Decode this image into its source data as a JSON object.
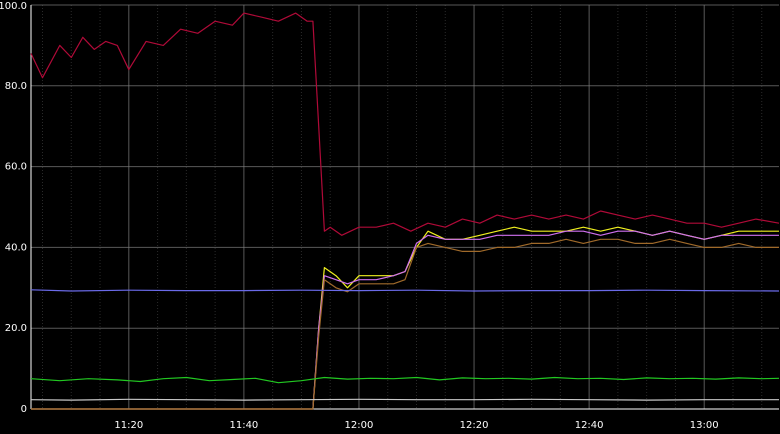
{
  "chart_data": {
    "type": "line",
    "title": "",
    "xlabel": "",
    "ylabel": "",
    "ylim": [
      0,
      100
    ],
    "xlim": [
      "11:03",
      "13:13"
    ],
    "grid": true,
    "background": "#000000",
    "grid_color": "#7f7f7f",
    "y_ticks": [
      {
        "value": 0,
        "label": "0"
      },
      {
        "value": 20,
        "label": "20.0"
      },
      {
        "value": 40,
        "label": "40.0"
      },
      {
        "value": 60,
        "label": "60.0"
      },
      {
        "value": 80,
        "label": "80.0"
      },
      {
        "value": 100,
        "label": "100.0"
      }
    ],
    "x_ticks": [
      {
        "value": "11:20",
        "label": "11:20"
      },
      {
        "value": "11:40",
        "label": "11:40"
      },
      {
        "value": "12:00",
        "label": "12:00"
      },
      {
        "value": "12:20",
        "label": "12:20"
      },
      {
        "value": "12:40",
        "label": "12:40"
      },
      {
        "value": "13:00",
        "label": "13:00"
      }
    ],
    "minor_x_ticks": [
      "11:05",
      "11:10",
      "11:15",
      "11:25",
      "11:30",
      "11:35",
      "11:45",
      "11:50",
      "11:55",
      "12:05",
      "12:10",
      "12:15",
      "12:25",
      "12:30",
      "12:35",
      "12:45",
      "12:50",
      "12:55",
      "13:05",
      "13:10"
    ],
    "series": [
      {
        "color": "#b00a38",
        "x": [
          "11:03",
          "11:05",
          "11:08",
          "11:10",
          "11:12",
          "11:14",
          "11:16",
          "11:18",
          "11:20",
          "11:23",
          "11:26",
          "11:29",
          "11:32",
          "11:35",
          "11:38",
          "11:40",
          "11:43",
          "11:46",
          "11:49",
          "11:51",
          "11:52",
          "11:53",
          "11:54",
          "11:55",
          "11:57",
          "12:00",
          "12:03",
          "12:06",
          "12:09",
          "12:12",
          "12:15",
          "12:18",
          "12:21",
          "12:24",
          "12:27",
          "12:30",
          "12:33",
          "12:36",
          "12:39",
          "12:42",
          "12:45",
          "12:48",
          "12:51",
          "12:54",
          "12:57",
          "13:00",
          "13:03",
          "13:06",
          "13:09",
          "13:13"
        ],
        "y": [
          88,
          82,
          90,
          87,
          92,
          89,
          91,
          90,
          84,
          91,
          90,
          94,
          93,
          96,
          95,
          98,
          97,
          96,
          98,
          96,
          96,
          70,
          44,
          45,
          43,
          45,
          45,
          46,
          44,
          46,
          45,
          47,
          46,
          48,
          47,
          48,
          47,
          48,
          47,
          49,
          48,
          47,
          48,
          47,
          46,
          46,
          45,
          46,
          47,
          46
        ]
      },
      {
        "color": "#f0f020",
        "x": [
          "11:03",
          "11:52",
          "11:53",
          "11:54",
          "11:56",
          "11:58",
          "12:00",
          "12:03",
          "12:06",
          "12:08",
          "12:10",
          "12:12",
          "12:15",
          "12:18",
          "12:21",
          "12:24",
          "12:27",
          "12:30",
          "12:33",
          "12:36",
          "12:39",
          "12:42",
          "12:45",
          "12:48",
          "12:51",
          "12:54",
          "12:57",
          "13:00",
          "13:03",
          "13:06",
          "13:09",
          "13:13"
        ],
        "y": [
          0,
          0,
          20,
          35,
          33,
          30,
          33,
          33,
          33,
          34,
          40,
          44,
          42,
          42,
          43,
          44,
          45,
          44,
          44,
          44,
          45,
          44,
          45,
          44,
          43,
          44,
          43,
          42,
          43,
          44,
          44,
          44
        ]
      },
      {
        "color": "#d070f0",
        "x": [
          "11:03",
          "11:52",
          "11:53",
          "11:54",
          "11:56",
          "11:58",
          "12:00",
          "12:03",
          "12:06",
          "12:08",
          "12:10",
          "12:12",
          "12:15",
          "12:18",
          "12:21",
          "12:24",
          "12:27",
          "12:30",
          "12:33",
          "12:36",
          "12:39",
          "12:42",
          "12:45",
          "12:48",
          "12:51",
          "12:54",
          "12:57",
          "13:00",
          "13:03",
          "13:06",
          "13:09",
          "13:13"
        ],
        "y": [
          0,
          0,
          20,
          33,
          32,
          31,
          32,
          32,
          33,
          34,
          41,
          43,
          42,
          42,
          42,
          43,
          43,
          43,
          43,
          44,
          44,
          43,
          44,
          44,
          43,
          44,
          43,
          42,
          43,
          43,
          43,
          43
        ]
      },
      {
        "color": "#a06a2a",
        "x": [
          "11:03",
          "11:52",
          "11:53",
          "11:54",
          "11:56",
          "11:58",
          "12:00",
          "12:03",
          "12:06",
          "12:08",
          "12:10",
          "12:12",
          "12:15",
          "12:18",
          "12:21",
          "12:24",
          "12:27",
          "12:30",
          "12:33",
          "12:36",
          "12:39",
          "12:42",
          "12:45",
          "12:48",
          "12:51",
          "12:54",
          "12:57",
          "13:00",
          "13:03",
          "13:06",
          "13:09",
          "13:13"
        ],
        "y": [
          0,
          0,
          18,
          32,
          30,
          29,
          31,
          31,
          31,
          32,
          40,
          41,
          40,
          39,
          39,
          40,
          40,
          41,
          41,
          42,
          41,
          42,
          42,
          41,
          41,
          42,
          41,
          40,
          40,
          41,
          40,
          40
        ]
      },
      {
        "color": "#6a6ae8",
        "x": [
          "11:03",
          "11:10",
          "11:20",
          "11:30",
          "11:40",
          "11:50",
          "12:00",
          "12:10",
          "12:20",
          "12:30",
          "12:40",
          "12:50",
          "13:00",
          "13:13"
        ],
        "y": [
          29.5,
          29.2,
          29.4,
          29.3,
          29.3,
          29.4,
          29.3,
          29.4,
          29.2,
          29.3,
          29.3,
          29.4,
          29.3,
          29.2
        ]
      },
      {
        "color": "#22c822",
        "x": [
          "11:03",
          "11:08",
          "11:13",
          "11:18",
          "11:22",
          "11:26",
          "11:30",
          "11:34",
          "11:38",
          "11:42",
          "11:46",
          "11:50",
          "11:54",
          "11:58",
          "12:02",
          "12:06",
          "12:10",
          "12:14",
          "12:18",
          "12:22",
          "12:26",
          "12:30",
          "12:34",
          "12:38",
          "12:42",
          "12:46",
          "12:50",
          "12:54",
          "12:58",
          "13:02",
          "13:06",
          "13:10",
          "13:13"
        ],
        "y": [
          7.5,
          7.0,
          7.5,
          7.2,
          6.8,
          7.5,
          7.8,
          7.0,
          7.3,
          7.6,
          6.5,
          7.0,
          7.8,
          7.4,
          7.6,
          7.5,
          7.8,
          7.2,
          7.7,
          7.5,
          7.6,
          7.4,
          7.8,
          7.5,
          7.6,
          7.3,
          7.7,
          7.5,
          7.6,
          7.4,
          7.7,
          7.5,
          7.6
        ]
      },
      {
        "color": "#c8c8c8",
        "x": [
          "11:03",
          "11:10",
          "11:20",
          "11:30",
          "11:40",
          "11:50",
          "12:00",
          "12:10",
          "12:20",
          "12:30",
          "12:40",
          "12:50",
          "13:00",
          "13:13"
        ],
        "y": [
          2.3,
          2.2,
          2.4,
          2.3,
          2.2,
          2.3,
          2.4,
          2.3,
          2.3,
          2.4,
          2.3,
          2.2,
          2.3,
          2.3
        ]
      }
    ]
  }
}
